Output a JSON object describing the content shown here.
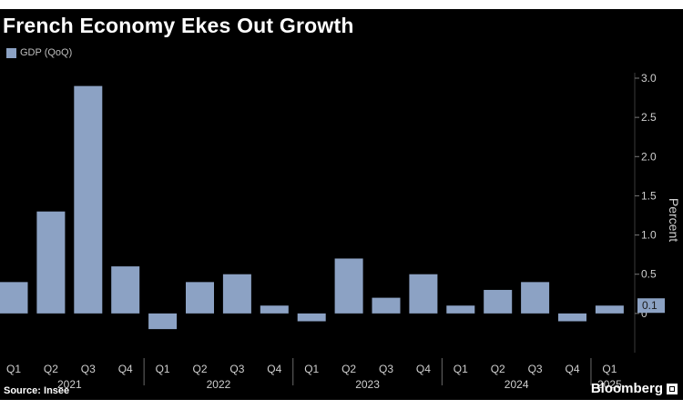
{
  "source_text": "Source: Insee",
  "brand": "Bloomberg",
  "colors": {
    "background": "#000000",
    "bar": "#8ca2c4",
    "grid": "#3a3a3a",
    "text": "#cfcfcf"
  },
  "chart_data": {
    "type": "bar",
    "title": "French Economy Ekes Out Growth",
    "legend": "GDP (QoQ)",
    "ylabel": "Percent",
    "ylim": [
      -0.5,
      3.0
    ],
    "yticks": [
      3.0,
      2.5,
      2.0,
      1.5,
      1.0,
      0.5,
      0
    ],
    "ytick_labels": [
      "3.0",
      "2.5",
      "2.0",
      "1.5",
      "1.0",
      "0.5",
      "0"
    ],
    "categories": [
      "Q1",
      "Q2",
      "Q3",
      "Q4",
      "Q1",
      "Q2",
      "Q3",
      "Q4",
      "Q1",
      "Q2",
      "Q3",
      "Q4",
      "Q1",
      "Q2",
      "Q3",
      "Q4",
      "Q1"
    ],
    "values": [
      0.4,
      1.3,
      2.9,
      0.6,
      -0.2,
      0.4,
      0.5,
      0.1,
      -0.1,
      0.7,
      0.2,
      0.5,
      0.1,
      0.3,
      0.4,
      -0.1,
      0.1
    ],
    "years": [
      {
        "label": "2021",
        "start": 0,
        "end": 3
      },
      {
        "label": "2022",
        "start": 4,
        "end": 7
      },
      {
        "label": "2023",
        "start": 8,
        "end": 11
      },
      {
        "label": "2024",
        "start": 12,
        "end": 15
      },
      {
        "label": "2025",
        "start": 16,
        "end": 16
      }
    ],
    "last_value_label": "0.1"
  }
}
